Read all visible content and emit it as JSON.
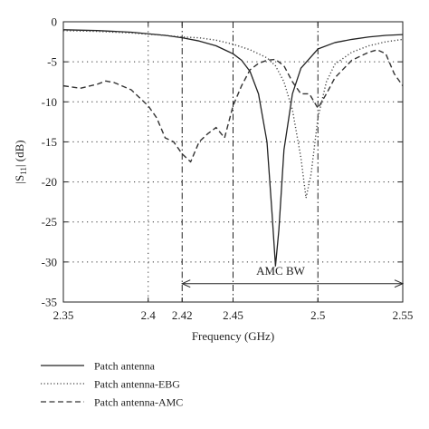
{
  "chart_data": {
    "type": "line",
    "xlabel": "Frequency (GHz)",
    "ylabel_main": "|S",
    "ylabel_sub": "11",
    "ylabel_tail": "| (dB)",
    "xlim": [
      2.35,
      2.55
    ],
    "ylim": [
      -35,
      0
    ],
    "x_ticks": [
      {
        "value": 2.35,
        "label": "2.35"
      },
      {
        "value": 2.4,
        "label": "2.4"
      },
      {
        "value": 2.42,
        "label": "2.42"
      },
      {
        "value": 2.45,
        "label": "2.45"
      },
      {
        "value": 2.5,
        "label": "2.5"
      },
      {
        "value": 2.55,
        "label": "2.55"
      }
    ],
    "y_ticks": [
      {
        "value": 0,
        "label": "0"
      },
      {
        "value": -5,
        "label": "-5"
      },
      {
        "value": -10,
        "label": "-10"
      },
      {
        "value": -15,
        "label": "-15"
      },
      {
        "value": -20,
        "label": "-20"
      },
      {
        "value": -25,
        "label": "-25"
      },
      {
        "value": -30,
        "label": "-30"
      },
      {
        "value": -35,
        "label": "-35"
      }
    ],
    "grid": true,
    "vlines": [
      2.42,
      2.45,
      2.5
    ],
    "annotation": {
      "text": "AMC BW",
      "x_start": 2.42,
      "x_end": 2.55,
      "y": -32.7,
      "text_x": 2.478,
      "text_y": -31.6
    },
    "series": [
      {
        "name": "Patch antenna",
        "style": "solid",
        "color": "#222222",
        "points": [
          [
            2.35,
            -1.0
          ],
          [
            2.37,
            -1.1
          ],
          [
            2.39,
            -1.3
          ],
          [
            2.41,
            -1.7
          ],
          [
            2.42,
            -2.0
          ],
          [
            2.43,
            -2.4
          ],
          [
            2.44,
            -3.0
          ],
          [
            2.45,
            -4.0
          ],
          [
            2.455,
            -4.8
          ],
          [
            2.46,
            -6.2
          ],
          [
            2.465,
            -9.0
          ],
          [
            2.47,
            -15.0
          ],
          [
            2.473,
            -24.0
          ],
          [
            2.475,
            -30.5
          ],
          [
            2.477,
            -26.0
          ],
          [
            2.48,
            -16.0
          ],
          [
            2.485,
            -9.0
          ],
          [
            2.49,
            -5.8
          ],
          [
            2.5,
            -3.4
          ],
          [
            2.51,
            -2.6
          ],
          [
            2.52,
            -2.2
          ],
          [
            2.53,
            -1.9
          ],
          [
            2.54,
            -1.7
          ],
          [
            2.55,
            -1.6
          ]
        ]
      },
      {
        "name": "Patch antenna-EBG",
        "style": "dotted",
        "color": "#444444",
        "points": [
          [
            2.35,
            -1.1
          ],
          [
            2.37,
            -1.2
          ],
          [
            2.39,
            -1.4
          ],
          [
            2.41,
            -1.7
          ],
          [
            2.42,
            -1.9
          ],
          [
            2.43,
            -2.0
          ],
          [
            2.44,
            -2.3
          ],
          [
            2.45,
            -2.8
          ],
          [
            2.46,
            -3.5
          ],
          [
            2.47,
            -4.5
          ],
          [
            2.475,
            -5.5
          ],
          [
            2.48,
            -7.5
          ],
          [
            2.485,
            -11.0
          ],
          [
            2.49,
            -17.0
          ],
          [
            2.493,
            -22.0
          ],
          [
            2.496,
            -19.0
          ],
          [
            2.5,
            -12.0
          ],
          [
            2.505,
            -7.5
          ],
          [
            2.51,
            -5.3
          ],
          [
            2.52,
            -3.8
          ],
          [
            2.53,
            -3.0
          ],
          [
            2.54,
            -2.5
          ],
          [
            2.55,
            -2.2
          ]
        ]
      },
      {
        "name": "Patch antenna-AMC",
        "style": "dashed",
        "color": "#333333",
        "points": [
          [
            2.35,
            -8.0
          ],
          [
            2.36,
            -8.3
          ],
          [
            2.37,
            -7.8
          ],
          [
            2.375,
            -7.4
          ],
          [
            2.38,
            -7.6
          ],
          [
            2.39,
            -8.5
          ],
          [
            2.4,
            -10.5
          ],
          [
            2.405,
            -12.0
          ],
          [
            2.41,
            -14.5
          ],
          [
            2.415,
            -15.0
          ],
          [
            2.42,
            -16.5
          ],
          [
            2.425,
            -17.5
          ],
          [
            2.43,
            -15.0
          ],
          [
            2.435,
            -14.0
          ],
          [
            2.44,
            -13.2
          ],
          [
            2.445,
            -14.5
          ],
          [
            2.45,
            -10.5
          ],
          [
            2.455,
            -8.0
          ],
          [
            2.46,
            -6.0
          ],
          [
            2.465,
            -5.2
          ],
          [
            2.47,
            -4.8
          ],
          [
            2.475,
            -4.7
          ],
          [
            2.48,
            -5.5
          ],
          [
            2.485,
            -7.5
          ],
          [
            2.49,
            -9.0
          ],
          [
            2.495,
            -9.0
          ],
          [
            2.5,
            -10.8
          ],
          [
            2.505,
            -9.0
          ],
          [
            2.51,
            -7.0
          ],
          [
            2.52,
            -4.8
          ],
          [
            2.53,
            -3.8
          ],
          [
            2.535,
            -3.5
          ],
          [
            2.54,
            -4.0
          ],
          [
            2.545,
            -6.5
          ],
          [
            2.55,
            -8.0
          ]
        ]
      }
    ]
  }
}
